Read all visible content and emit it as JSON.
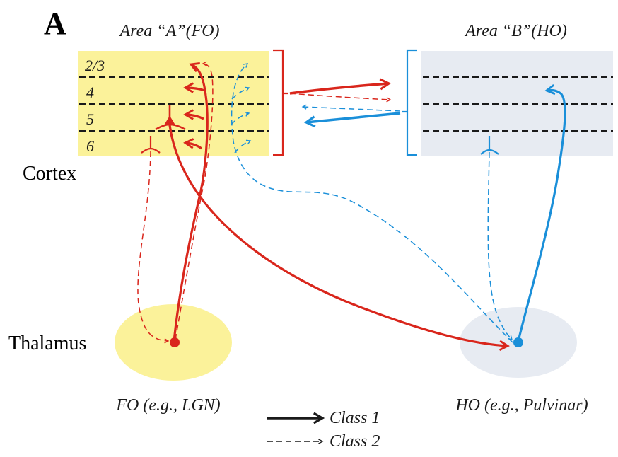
{
  "panel_label": "A",
  "areas": {
    "a": {
      "title": "Area “A”(FO)",
      "fill": "#fbf29a"
    },
    "b": {
      "title": "Area “B”(HO)",
      "fill": "#e7ebf2"
    }
  },
  "layers": [
    "2/3",
    "4",
    "5",
    "6"
  ],
  "region_labels": {
    "cortex": "Cortex",
    "thalamus": "Thalamus"
  },
  "nuclei": {
    "fo": {
      "label": "FO (e.g., LGN)",
      "fill": "#fbf29a"
    },
    "ho": {
      "label": "HO (e.g., Pulvinar)",
      "fill": "#e7ebf2"
    }
  },
  "legend": {
    "class1": "Class 1",
    "class2": "Class 2"
  },
  "colors": {
    "red": "#d9261c",
    "blue": "#1a8fd9",
    "legend": "#1a1a1a",
    "dash": "#1a1a1a"
  }
}
